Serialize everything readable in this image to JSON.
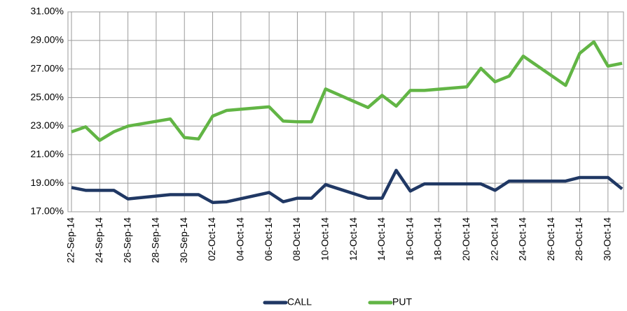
{
  "chart_data": {
    "type": "line",
    "x": [
      "2014-09-22",
      "2014-09-23",
      "2014-09-24",
      "2014-09-25",
      "2014-09-26",
      "2014-09-29",
      "2014-09-30",
      "2014-10-01",
      "2014-10-02",
      "2014-10-03",
      "2014-10-06",
      "2014-10-07",
      "2014-10-08",
      "2014-10-09",
      "2014-10-10",
      "2014-10-13",
      "2014-10-14",
      "2014-10-15",
      "2014-10-16",
      "2014-10-17",
      "2014-10-20",
      "2014-10-21",
      "2014-10-22",
      "2014-10-23",
      "2014-10-24",
      "2014-10-27",
      "2014-10-28",
      "2014-10-29",
      "2014-10-30",
      "2014-10-31"
    ],
    "series": [
      {
        "name": "CALL",
        "color": "#203864",
        "values": [
          18.7,
          18.5,
          18.5,
          18.5,
          17.9,
          18.2,
          18.2,
          18.2,
          17.65,
          17.7,
          18.35,
          17.7,
          17.95,
          17.95,
          18.9,
          17.95,
          17.95,
          19.9,
          18.45,
          18.95,
          18.95,
          18.95,
          18.5,
          19.15,
          19.15,
          19.15,
          19.4,
          19.4,
          19.4,
          18.6
        ]
      },
      {
        "name": "PUT",
        "color": "#62b545",
        "values": [
          22.6,
          22.95,
          22.0,
          22.6,
          23.0,
          23.5,
          22.2,
          22.1,
          23.7,
          24.1,
          24.35,
          23.35,
          23.3,
          23.3,
          25.6,
          24.3,
          25.15,
          24.4,
          25.5,
          25.5,
          25.75,
          27.05,
          26.1,
          26.5,
          27.9,
          25.85,
          28.1,
          28.9,
          27.2,
          27.4
        ]
      }
    ],
    "xlim": [
      "2014-09-22",
      "2014-10-31"
    ],
    "xticks": [
      {
        "value": "2014-09-22",
        "label": "22-Sep-14"
      },
      {
        "value": "2014-09-24",
        "label": "24-Sep-14"
      },
      {
        "value": "2014-09-26",
        "label": "26-Sep-14"
      },
      {
        "value": "2014-09-28",
        "label": "28-Sep-14"
      },
      {
        "value": "2014-09-30",
        "label": "30-Sep-14"
      },
      {
        "value": "2014-10-02",
        "label": "02-Oct-14"
      },
      {
        "value": "2014-10-04",
        "label": "04-Oct-14"
      },
      {
        "value": "2014-10-06",
        "label": "06-Oct-14"
      },
      {
        "value": "2014-10-08",
        "label": "08-Oct-14"
      },
      {
        "value": "2014-10-10",
        "label": "10-Oct-14"
      },
      {
        "value": "2014-10-12",
        "label": "12-Oct-14"
      },
      {
        "value": "2014-10-14",
        "label": "14-Oct-14"
      },
      {
        "value": "2014-10-16",
        "label": "16-Oct-14"
      },
      {
        "value": "2014-10-18",
        "label": "18-Oct-14"
      },
      {
        "value": "2014-10-20",
        "label": "20-Oct-14"
      },
      {
        "value": "2014-10-22",
        "label": "22-Oct-14"
      },
      {
        "value": "2014-10-24",
        "label": "24-Oct-14"
      },
      {
        "value": "2014-10-26",
        "label": "26-Oct-14"
      },
      {
        "value": "2014-10-28",
        "label": "28-Oct-14"
      },
      {
        "value": "2014-10-30",
        "label": "30-Oct-14"
      }
    ],
    "ylim": [
      17,
      31
    ],
    "yticks": [
      {
        "value": 17,
        "label": "17.00%"
      },
      {
        "value": 19,
        "label": "19.00%"
      },
      {
        "value": 21,
        "label": "21.00%"
      },
      {
        "value": 23,
        "label": "23.00%"
      },
      {
        "value": 25,
        "label": "25.00%"
      },
      {
        "value": 27,
        "label": "27.00%"
      },
      {
        "value": 29,
        "label": "29.00%"
      },
      {
        "value": 31,
        "label": "31.00%"
      }
    ],
    "grid": true,
    "legend": "bottom"
  }
}
